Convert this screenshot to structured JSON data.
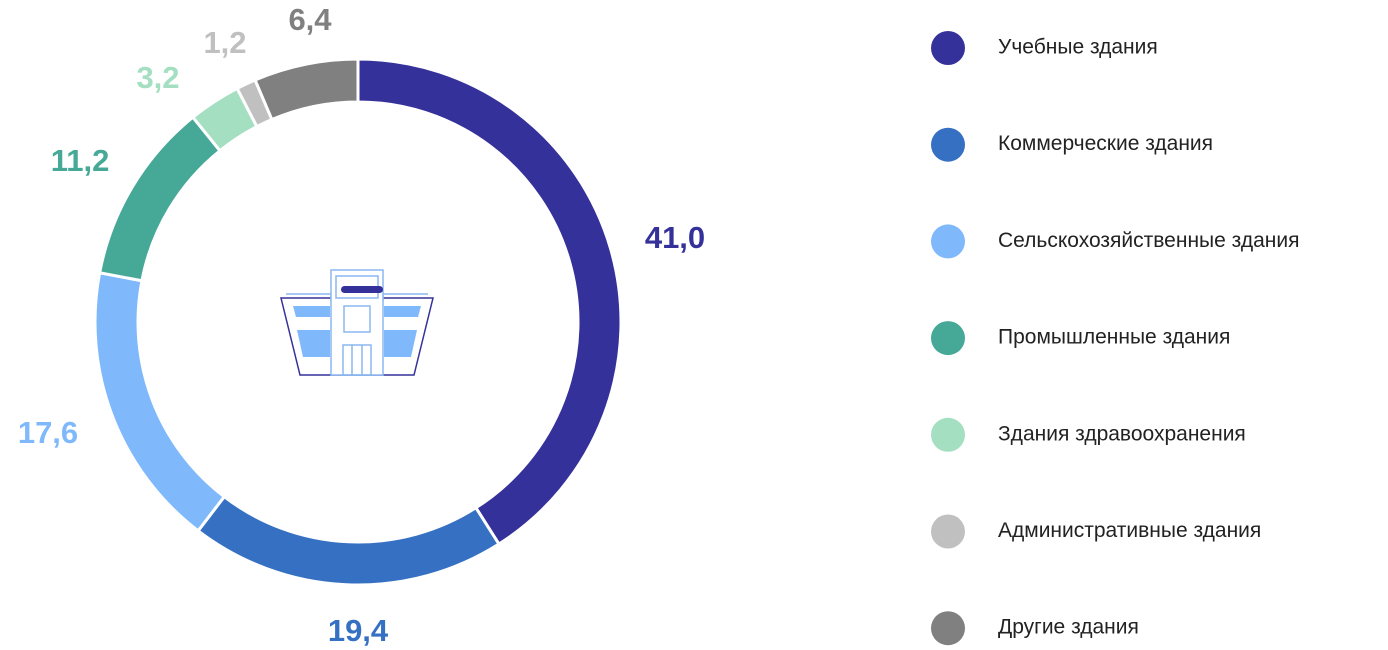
{
  "chart_data": {
    "type": "donut",
    "categories": [
      "Учебные здания",
      "Коммерческие здания",
      "Сельскохозяйственные здания",
      "Промышленные здания",
      "Здания здравоохранения",
      "Административные здания",
      "Другие здания"
    ],
    "values": [
      41.0,
      19.4,
      17.6,
      11.2,
      3.2,
      1.2,
      6.4
    ],
    "value_labels": [
      "41,0",
      "19,4",
      "17,6",
      "11,2",
      "3,2",
      "1,2",
      "6,4"
    ],
    "colors": [
      "#35319a",
      "#3570c3",
      "#80b9fb",
      "#46a896",
      "#a3dfc0",
      "#c0c0c0",
      "#808080"
    ],
    "legend": "right"
  }
}
